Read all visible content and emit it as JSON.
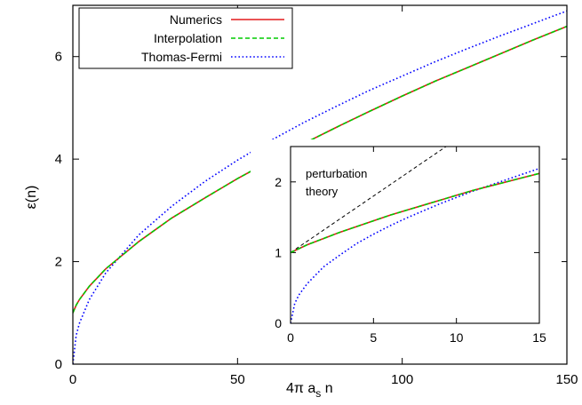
{
  "chart_data": [
    {
      "type": "line",
      "panel": "main",
      "xlabel": "4π a",
      "xlabel_sub": "s",
      "xlabel_tail": " n",
      "ylabel": "ε(n)",
      "xlim": [
        0,
        150
      ],
      "ylim": [
        0,
        7
      ],
      "xticks": [
        "0",
        "50",
        "100",
        "150"
      ],
      "yticks": [
        "0",
        "2",
        "4",
        "6"
      ],
      "legend_position": "top-left",
      "grid": false,
      "series": [
        {
          "name": "Numerics",
          "color": "#e41a1c",
          "style": "solid",
          "x": [
            0,
            1,
            2,
            5,
            10,
            20,
            30,
            40,
            50,
            60,
            70,
            80,
            90,
            100,
            110,
            120,
            130,
            140,
            150
          ],
          "y": [
            1.0,
            1.15,
            1.26,
            1.52,
            1.86,
            2.39,
            2.85,
            3.24,
            3.62,
            3.97,
            4.3,
            4.62,
            4.93,
            5.23,
            5.52,
            5.79,
            6.06,
            6.33,
            6.59
          ]
        },
        {
          "name": "Interpolation",
          "color": "#00cc00",
          "style": "dashed",
          "x": [
            0,
            1,
            2,
            5,
            10,
            20,
            30,
            40,
            50,
            60,
            70,
            80,
            90,
            100,
            110,
            120,
            130,
            140,
            150
          ],
          "y": [
            1.0,
            1.15,
            1.26,
            1.52,
            1.86,
            2.39,
            2.85,
            3.24,
            3.62,
            3.97,
            4.3,
            4.62,
            4.93,
            5.23,
            5.52,
            5.79,
            6.06,
            6.33,
            6.59
          ]
        },
        {
          "name": "Thomas-Fermi",
          "color": "#0000ff",
          "style": "dotted",
          "x": [
            0,
            1,
            2,
            5,
            10,
            20,
            30,
            40,
            50,
            60,
            70,
            80,
            90,
            100,
            110,
            120,
            130,
            140,
            150
          ],
          "y": [
            0,
            0.56,
            0.8,
            1.26,
            1.78,
            2.52,
            3.08,
            3.56,
            3.98,
            4.36,
            4.71,
            5.03,
            5.34,
            5.62,
            5.9,
            6.16,
            6.41,
            6.65,
            6.89
          ]
        }
      ]
    },
    {
      "type": "line",
      "panel": "inset",
      "xlim": [
        0,
        15
      ],
      "ylim": [
        0,
        2.5
      ],
      "xticks": [
        "0",
        "5",
        "10",
        "15"
      ],
      "yticks": [
        "0",
        "1",
        "2"
      ],
      "annotation": [
        "perturbation",
        "theory"
      ],
      "series": [
        {
          "color": "#e41a1c",
          "style": "solid",
          "x": [
            0,
            1,
            2,
            3,
            4,
            5,
            6,
            7,
            8,
            9,
            10,
            11,
            12,
            13,
            14,
            15
          ],
          "y": [
            1.0,
            1.11,
            1.2,
            1.29,
            1.37,
            1.45,
            1.53,
            1.6,
            1.67,
            1.74,
            1.81,
            1.88,
            1.94,
            2.0,
            2.06,
            2.12
          ]
        },
        {
          "color": "#00cc00",
          "style": "dashed",
          "x": [
            0,
            1,
            2,
            3,
            4,
            5,
            6,
            7,
            8,
            9,
            10,
            11,
            12,
            13,
            14,
            15
          ],
          "y": [
            1.0,
            1.11,
            1.2,
            1.29,
            1.37,
            1.45,
            1.53,
            1.6,
            1.67,
            1.74,
            1.81,
            1.88,
            1.94,
            2.0,
            2.06,
            2.12
          ]
        },
        {
          "color": "#0000ff",
          "style": "dotted",
          "x": [
            0,
            0.25,
            0.5,
            1,
            2,
            3,
            4,
            5,
            6,
            7,
            8,
            9,
            10,
            11,
            12,
            13,
            14,
            15
          ],
          "y": [
            0,
            0.28,
            0.4,
            0.56,
            0.8,
            0.97,
            1.13,
            1.26,
            1.38,
            1.49,
            1.59,
            1.69,
            1.78,
            1.87,
            1.95,
            2.03,
            2.11,
            2.19
          ]
        },
        {
          "color": "#000000",
          "style": "dashed",
          "role": "perturbation theory",
          "x": [
            0,
            10
          ],
          "y": [
            1.0,
            2.6
          ]
        }
      ]
    }
  ]
}
